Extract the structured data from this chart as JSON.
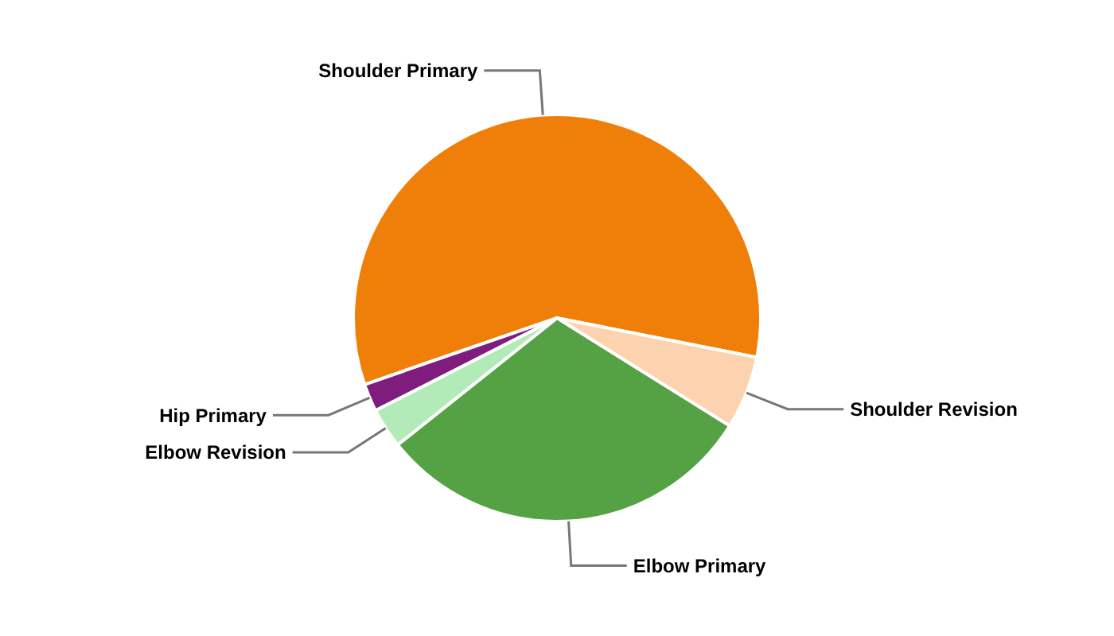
{
  "chart_data": {
    "type": "pie",
    "categories": [
      "Shoulder Primary",
      "Shoulder Revision",
      "Elbow Primary",
      "Elbow Revision",
      "Hip Primary"
    ],
    "values": [
      58.4,
      5.8,
      30.4,
      3.2,
      2.2
    ],
    "colors": [
      "#f07f09",
      "#fcd3ae",
      "#54a244",
      "#b3ebb8",
      "#7f1c7d"
    ]
  }
}
